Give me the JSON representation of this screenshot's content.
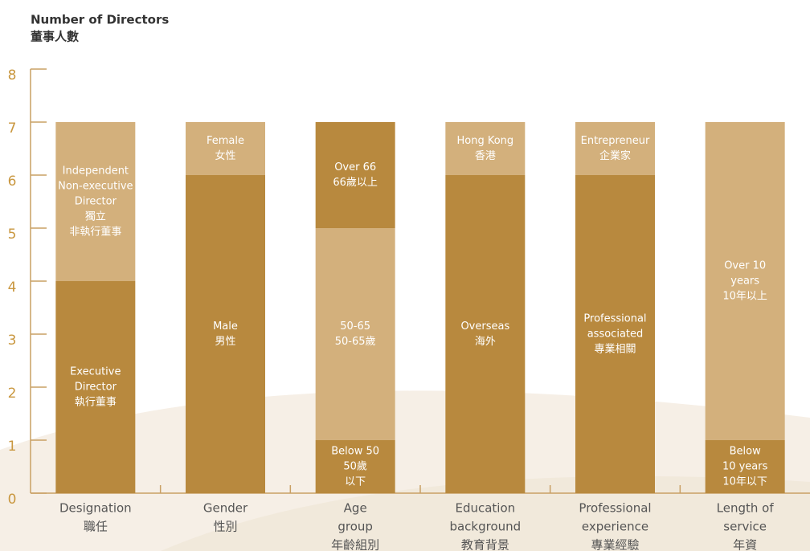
{
  "chart_data": {
    "type": "stacked-bar",
    "title": "Number of Directors",
    "subtitle": "董事人數",
    "ylim": [
      0,
      8
    ],
    "yticks": [
      0,
      1,
      2,
      3,
      4,
      5,
      6,
      7,
      8
    ],
    "colors": {
      "dark": "#b8893e",
      "light": "#d3b07c"
    },
    "stacks": [
      {
        "category": [
          "Designation",
          "職任"
        ],
        "segments": [
          {
            "label": [
              "Executive",
              "Director",
              "執行董事"
            ],
            "value": 4,
            "color": "#b8893e"
          },
          {
            "label": [
              "Independent",
              "Non-executive",
              "Director",
              "獨立",
              "非執行董事"
            ],
            "value": 3,
            "color": "#d3b07c"
          }
        ]
      },
      {
        "category": [
          "Gender",
          "性別"
        ],
        "segments": [
          {
            "label": [
              "Male",
              "男性"
            ],
            "value": 6,
            "color": "#b8893e"
          },
          {
            "label": [
              "Female",
              "女性"
            ],
            "value": 1,
            "color": "#d3b07c"
          }
        ]
      },
      {
        "category": [
          "Age",
          "group",
          "年齡組別"
        ],
        "segments": [
          {
            "label": [
              "Below 50",
              "50歲",
              "以下"
            ],
            "value": 1,
            "color": "#b8893e"
          },
          {
            "label": [
              "50-65",
              "50-65歲"
            ],
            "value": 4,
            "color": "#d3b07c"
          },
          {
            "label": [
              "Over 66",
              "66歲以上"
            ],
            "value": 2,
            "color": "#b8893e"
          }
        ]
      },
      {
        "category": [
          "Education",
          "background",
          "教育背景"
        ],
        "segments": [
          {
            "label": [
              "Overseas",
              "海外"
            ],
            "value": 6,
            "color": "#b8893e"
          },
          {
            "label": [
              "Hong Kong",
              "香港"
            ],
            "value": 1,
            "color": "#d3b07c"
          }
        ]
      },
      {
        "category": [
          "Professional",
          "experience",
          "專業經驗"
        ],
        "segments": [
          {
            "label": [
              "Professional",
              "associated",
              "專業相關"
            ],
            "value": 6,
            "color": "#b8893e"
          },
          {
            "label": [
              "Entrepreneur",
              "企業家"
            ],
            "value": 1,
            "color": "#d3b07c"
          }
        ]
      },
      {
        "category": [
          "Length of",
          "service",
          "年資"
        ],
        "segments": [
          {
            "label": [
              "Below",
              "10 years",
              "10年以下"
            ],
            "value": 1,
            "color": "#b8893e"
          },
          {
            "label": [
              "Over 10",
              "years",
              "10年以上"
            ],
            "value": 6,
            "color": "#d3b07c"
          }
        ]
      }
    ]
  }
}
